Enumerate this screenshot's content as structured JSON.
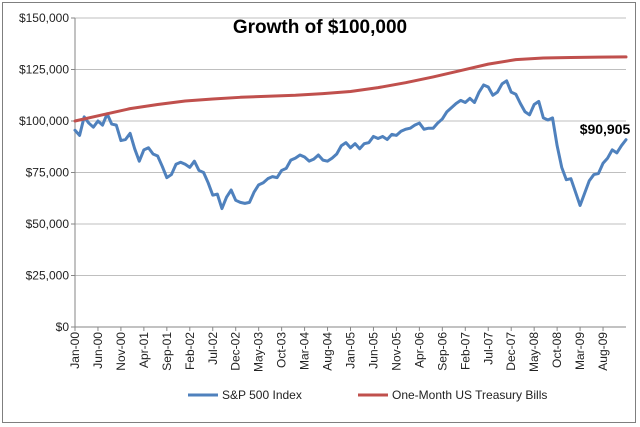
{
  "chart_data": {
    "type": "line",
    "title": "Growth of $100,000",
    "xlabel": "",
    "ylabel": "",
    "ylim": [
      0,
      150000
    ],
    "y_ticks": [
      "$0",
      "$25,000",
      "$50,000",
      "$75,000",
      "$100,000",
      "$125,000",
      "$150,000"
    ],
    "x_tick_labels": [
      "Jan-00",
      "Jun-00",
      "Nov-00",
      "Apr-01",
      "Sep-01",
      "Feb-02",
      "Jul-02",
      "Dec-02",
      "May-03",
      "Oct-03",
      "Mar-04",
      "Aug-04",
      "Jan-05",
      "Jun-05",
      "Nov-05",
      "Apr-06",
      "Sep-06",
      "Feb-07",
      "Jul-07",
      "Dec-07",
      "May-08",
      "Oct-08",
      "Mar-09",
      "Aug-09"
    ],
    "x_range_months": [
      0,
      120
    ],
    "annotation": "$90,905",
    "grid": "horizontal",
    "legend_position": "bottom",
    "series": [
      {
        "name": "S&P 500 Index",
        "color": "#4f81bd",
        "points": [
          [
            0,
            95500
          ],
          [
            1,
            93000
          ],
          [
            2,
            102000
          ],
          [
            3,
            99000
          ],
          [
            4,
            97000
          ],
          [
            5,
            100000
          ],
          [
            6,
            98000
          ],
          [
            7,
            103500
          ],
          [
            8,
            98500
          ],
          [
            9,
            98000
          ],
          [
            10,
            90500
          ],
          [
            11,
            91000
          ],
          [
            12,
            94000
          ],
          [
            13,
            86500
          ],
          [
            14,
            80500
          ],
          [
            15,
            86000
          ],
          [
            16,
            87000
          ],
          [
            17,
            84000
          ],
          [
            18,
            83000
          ],
          [
            19,
            78000
          ],
          [
            20,
            72500
          ],
          [
            21,
            74000
          ],
          [
            22,
            79000
          ],
          [
            23,
            80000
          ],
          [
            24,
            79000
          ],
          [
            25,
            77500
          ],
          [
            26,
            80500
          ],
          [
            27,
            76000
          ],
          [
            28,
            75000
          ],
          [
            29,
            70000
          ],
          [
            30,
            64000
          ],
          [
            31,
            64500
          ],
          [
            32,
            57500
          ],
          [
            33,
            63000
          ],
          [
            34,
            66500
          ],
          [
            35,
            61500
          ],
          [
            36,
            60500
          ],
          [
            37,
            60000
          ],
          [
            38,
            60500
          ],
          [
            39,
            65500
          ],
          [
            40,
            69000
          ],
          [
            41,
            70000
          ],
          [
            42,
            72000
          ],
          [
            43,
            73000
          ],
          [
            44,
            72500
          ],
          [
            45,
            76000
          ],
          [
            46,
            77000
          ],
          [
            47,
            81000
          ],
          [
            48,
            82000
          ],
          [
            49,
            83500
          ],
          [
            50,
            82500
          ],
          [
            51,
            80500
          ],
          [
            52,
            81500
          ],
          [
            53,
            83500
          ],
          [
            54,
            81000
          ],
          [
            55,
            80500
          ],
          [
            56,
            82000
          ],
          [
            57,
            84000
          ],
          [
            58,
            88000
          ],
          [
            59,
            89500
          ],
          [
            60,
            87000
          ],
          [
            61,
            89000
          ],
          [
            62,
            86500
          ],
          [
            63,
            89000
          ],
          [
            64,
            89500
          ],
          [
            65,
            92500
          ],
          [
            66,
            91500
          ],
          [
            67,
            92500
          ],
          [
            68,
            91000
          ],
          [
            69,
            93500
          ],
          [
            70,
            93000
          ],
          [
            71,
            95000
          ],
          [
            72,
            96000
          ],
          [
            73,
            96500
          ],
          [
            74,
            98000
          ],
          [
            75,
            99000
          ],
          [
            76,
            96000
          ],
          [
            77,
            96500
          ],
          [
            78,
            96500
          ],
          [
            79,
            99000
          ],
          [
            80,
            101000
          ],
          [
            81,
            104500
          ],
          [
            82,
            106500
          ],
          [
            83,
            108500
          ],
          [
            84,
            110000
          ],
          [
            85,
            109000
          ],
          [
            86,
            111000
          ],
          [
            87,
            109000
          ],
          [
            88,
            114000
          ],
          [
            89,
            117500
          ],
          [
            90,
            116500
          ],
          [
            91,
            112500
          ],
          [
            92,
            114000
          ],
          [
            93,
            118000
          ],
          [
            94,
            119500
          ],
          [
            95,
            114000
          ],
          [
            96,
            113000
          ],
          [
            97,
            108500
          ],
          [
            98,
            104500
          ],
          [
            99,
            103000
          ],
          [
            100,
            108000
          ],
          [
            101,
            109500
          ],
          [
            102,
            101500
          ],
          [
            103,
            100500
          ],
          [
            104,
            101500
          ],
          [
            105,
            88000
          ],
          [
            106,
            77500
          ],
          [
            107,
            71500
          ],
          [
            108,
            72000
          ],
          [
            109,
            65500
          ],
          [
            110,
            59000
          ],
          [
            111,
            65000
          ],
          [
            112,
            71000
          ],
          [
            113,
            74000
          ],
          [
            114,
            74500
          ],
          [
            115,
            79500
          ],
          [
            116,
            82000
          ],
          [
            117,
            86000
          ],
          [
            118,
            84500
          ],
          [
            119,
            88000
          ],
          [
            120,
            90905
          ]
        ]
      },
      {
        "name": "One-Month US Treasury Bills",
        "color": "#c0504d",
        "points": [
          [
            0,
            100000
          ],
          [
            6,
            103000
          ],
          [
            12,
            106000
          ],
          [
            18,
            108000
          ],
          [
            24,
            109700
          ],
          [
            30,
            110700
          ],
          [
            36,
            111500
          ],
          [
            42,
            112000
          ],
          [
            48,
            112500
          ],
          [
            54,
            113300
          ],
          [
            60,
            114300
          ],
          [
            66,
            116200
          ],
          [
            72,
            118600
          ],
          [
            78,
            121400
          ],
          [
            84,
            124500
          ],
          [
            90,
            127600
          ],
          [
            96,
            129800
          ],
          [
            102,
            130600
          ],
          [
            108,
            130800
          ],
          [
            114,
            131000
          ],
          [
            120,
            131100
          ]
        ]
      }
    ]
  }
}
